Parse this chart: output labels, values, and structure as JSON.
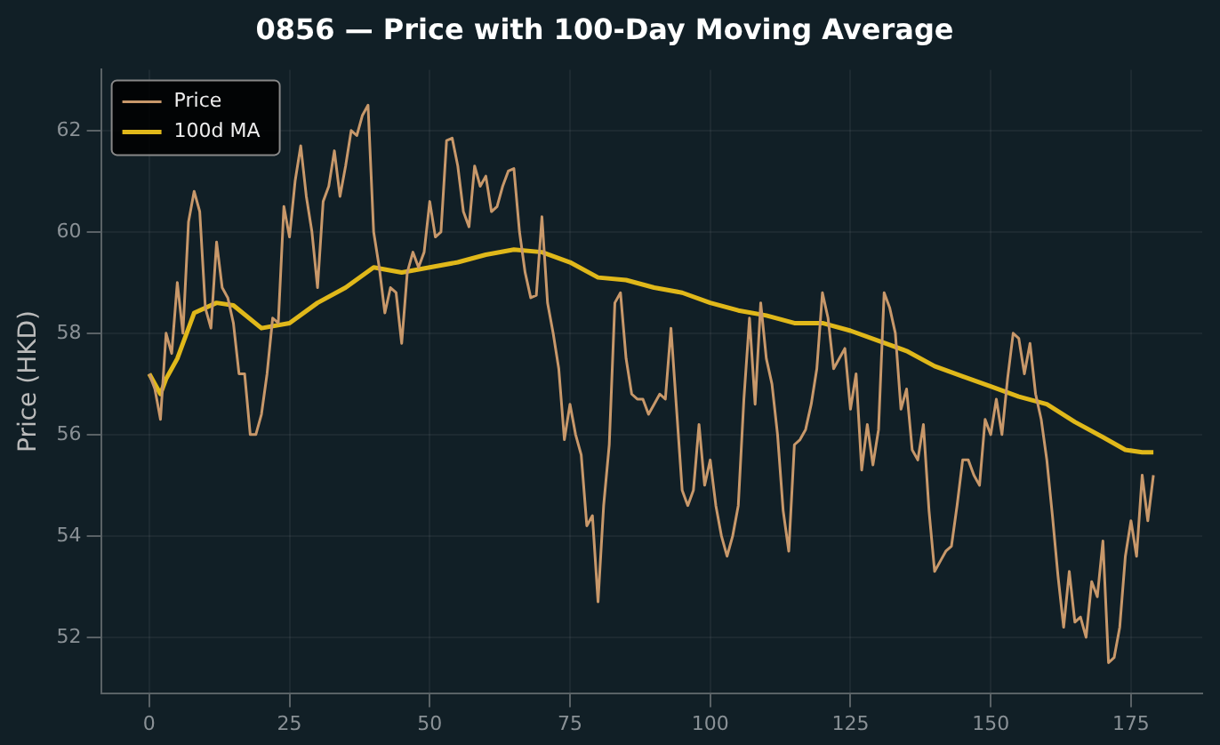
{
  "chart_data": {
    "type": "line",
    "title": "0856 — Price with 100-Day Moving Average",
    "ylabel": "Price (HKD)",
    "xlim": [
      -8.6,
      187.7
    ],
    "xticks": [
      0,
      25,
      50,
      75,
      100,
      125,
      150,
      175
    ],
    "ylim": [
      50.9,
      63.2
    ],
    "yticks": [
      52,
      54,
      56,
      58,
      60,
      62
    ],
    "grid": true,
    "legend": "top left",
    "marker": "none",
    "line_style": "solid",
    "series": [
      {
        "name": "Price",
        "color": "#c8986a",
        "x": [
          0,
          1,
          2,
          3,
          4,
          5,
          6,
          7,
          8,
          9,
          10,
          11,
          12,
          13,
          14,
          15,
          16,
          17,
          18,
          19,
          20,
          21,
          22,
          23,
          24,
          25,
          26,
          27,
          28,
          29,
          30,
          31,
          32,
          33,
          34,
          35,
          36,
          37,
          38,
          39,
          40,
          41,
          42,
          43,
          44,
          45,
          46,
          47,
          48,
          49,
          50,
          51,
          52,
          53,
          54,
          55,
          56,
          57,
          58,
          59,
          60,
          61,
          62,
          63,
          64,
          65,
          66,
          67,
          68,
          69,
          70,
          71,
          72,
          73,
          74,
          75,
          76,
          77,
          78,
          79,
          80,
          81,
          82,
          83,
          84,
          85,
          86,
          87,
          88,
          89,
          90,
          91,
          92,
          93,
          94,
          95,
          96,
          97,
          98,
          99,
          100,
          101,
          102,
          103,
          104,
          105,
          106,
          107,
          108,
          109,
          110,
          111,
          112,
          113,
          114,
          115,
          116,
          117,
          118,
          119,
          120,
          121,
          122,
          123,
          124,
          125,
          126,
          127,
          128,
          129,
          130,
          131,
          132,
          133,
          134,
          135,
          136,
          137,
          138,
          139,
          140,
          141,
          142,
          143,
          144,
          145,
          146,
          147,
          148,
          149,
          150,
          151,
          152,
          153,
          154,
          155,
          156,
          157,
          158,
          159,
          160,
          161,
          162,
          163,
          164,
          165,
          166,
          167,
          168,
          169,
          170,
          171,
          172,
          173,
          174,
          175,
          176,
          177,
          178,
          179
        ],
        "values": [
          57.2,
          56.9,
          56.3,
          58.0,
          57.6,
          59.0,
          58.0,
          60.2,
          60.8,
          60.4,
          58.5,
          58.1,
          59.8,
          58.9,
          58.7,
          58.2,
          57.2,
          57.2,
          56.0,
          56.0,
          56.4,
          57.2,
          58.3,
          58.2,
          60.5,
          59.9,
          61.0,
          61.7,
          60.7,
          60.0,
          58.9,
          60.6,
          60.9,
          61.6,
          60.7,
          61.3,
          62.0,
          61.9,
          62.3,
          62.5,
          60.0,
          59.3,
          58.4,
          58.9,
          58.8,
          57.8,
          59.2,
          59.6,
          59.3,
          59.6,
          60.6,
          59.9,
          60.0,
          61.8,
          61.85,
          61.3,
          60.4,
          60.1,
          61.3,
          60.9,
          61.1,
          60.4,
          60.5,
          60.9,
          61.2,
          61.25,
          60.0,
          59.2,
          58.7,
          58.75,
          60.3,
          58.6,
          58.0,
          57.3,
          55.9,
          56.6,
          56.0,
          55.6,
          54.2,
          54.4,
          52.7,
          54.6,
          55.8,
          58.6,
          58.8,
          57.5,
          56.8,
          56.7,
          56.7,
          56.4,
          56.6,
          56.8,
          56.7,
          58.1,
          56.5,
          54.9,
          54.6,
          54.9,
          56.2,
          55.0,
          55.5,
          54.6,
          54.0,
          53.6,
          54.0,
          54.6,
          56.7,
          58.3,
          56.6,
          58.6,
          57.5,
          57.0,
          56.0,
          54.5,
          53.7,
          55.8,
          55.9,
          56.1,
          56.6,
          57.3,
          58.8,
          58.3,
          57.3,
          57.5,
          57.7,
          56.5,
          57.2,
          55.3,
          56.2,
          55.4,
          56.1,
          58.8,
          58.5,
          58.0,
          56.5,
          56.9,
          55.7,
          55.5,
          56.2,
          54.5,
          53.3,
          53.5,
          53.7,
          53.8,
          54.6,
          55.5,
          55.5,
          55.2,
          55.0,
          56.3,
          56.0,
          56.7,
          56.0,
          57.1,
          58.0,
          57.9,
          57.2,
          57.8,
          56.8,
          56.3,
          55.5,
          54.4,
          53.2,
          52.2,
          53.3,
          52.3,
          52.4,
          52.0,
          53.1,
          52.8,
          53.9,
          51.5,
          51.6,
          52.2,
          53.6,
          54.3,
          53.6,
          55.2,
          54.3,
          55.2
        ]
      },
      {
        "name": "100d MA",
        "color": "#e0b81a",
        "x": [
          0,
          2,
          3,
          5,
          8,
          12,
          15,
          20,
          25,
          30,
          35,
          40,
          45,
          50,
          55,
          60,
          65,
          70,
          75,
          80,
          85,
          90,
          95,
          100,
          105,
          110,
          115,
          120,
          125,
          130,
          135,
          140,
          145,
          150,
          155,
          160,
          165,
          170,
          174,
          177,
          179
        ],
        "values": [
          57.2,
          56.8,
          57.1,
          57.5,
          58.4,
          58.6,
          58.55,
          58.1,
          58.2,
          58.6,
          58.9,
          59.3,
          59.2,
          59.3,
          59.4,
          59.55,
          59.65,
          59.6,
          59.4,
          59.1,
          59.05,
          58.9,
          58.8,
          58.6,
          58.45,
          58.35,
          58.2,
          58.2,
          58.05,
          57.85,
          57.65,
          57.35,
          57.15,
          56.95,
          56.75,
          56.6,
          56.25,
          55.95,
          55.7,
          55.65,
          55.65
        ]
      }
    ]
  }
}
